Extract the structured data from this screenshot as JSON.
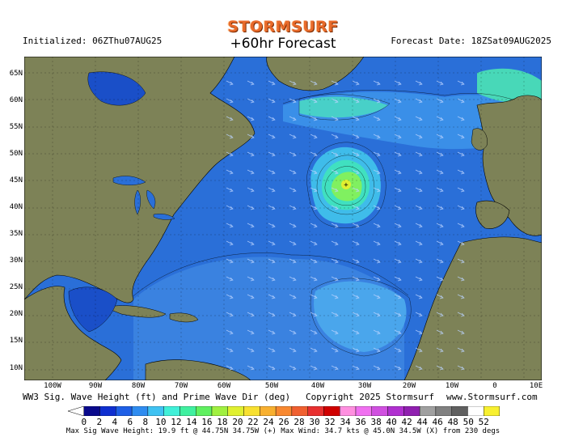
{
  "brand": "STORMSURF",
  "title": "+60hr Forecast",
  "initialized": "Initialized: 06ZThu07AUG25",
  "forecast_date": "Forecast Date: 18ZSat09AUG2025",
  "lat_labels": [
    "65N",
    "60N",
    "55N",
    "50N",
    "45N",
    "40N",
    "35N",
    "30N",
    "25N",
    "20N",
    "15N",
    "10N"
  ],
  "lon_labels": [
    "100W",
    "90W",
    "80W",
    "70W",
    "60W",
    "50W",
    "40W",
    "30W",
    "20W",
    "10W",
    "0",
    "10E"
  ],
  "footer_left": "WW3 Sig. Wave Height (ft) and Prime Wave Dir (deg)",
  "footer_copyright": "Copyright 2025 Stormsurf",
  "footer_url": "www.Stormsurf.com",
  "colorbar": {
    "labels": [
      "0",
      "2",
      "4",
      "6",
      "8",
      "10",
      "12",
      "14",
      "16",
      "18",
      "20",
      "22",
      "24",
      "26",
      "28",
      "30",
      "32",
      "34",
      "36",
      "38",
      "40",
      "42",
      "44",
      "46",
      "48",
      "50",
      "52"
    ],
    "colors": [
      "#0a0a8c",
      "#0f2fd0",
      "#1e5fe6",
      "#2f8cf0",
      "#3fc2f2",
      "#40f0d8",
      "#40f0a0",
      "#60f060",
      "#a0f040",
      "#e0f030",
      "#f8e030",
      "#f8b030",
      "#f88830",
      "#f06030",
      "#e83030",
      "#d00000",
      "#ff90e0",
      "#f070f0",
      "#d050e0",
      "#b030d0",
      "#9020b0",
      "#a0a0a0",
      "#808080",
      "#606060",
      "#ffffff",
      "#f8f030"
    ]
  },
  "stats": "Max Sig Wave Height: 19.9 ft @ 44.75N 34.75W (+)   Max Wind: 34.7 kts @ 45.0N 34.5W (X) from 230 degs"
}
